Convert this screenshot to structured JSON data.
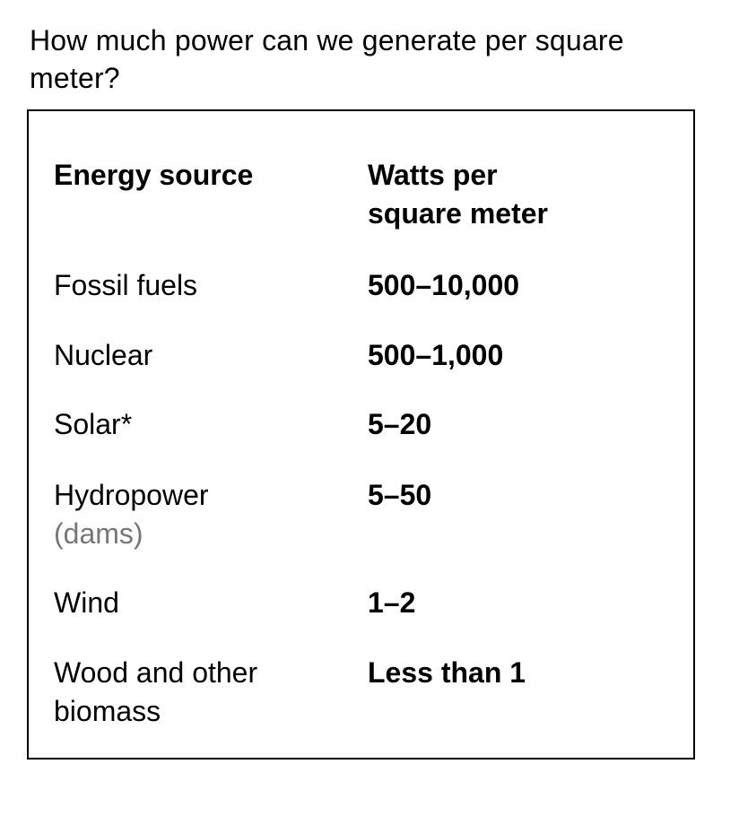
{
  "title": "How much power can we generate per square meter?",
  "table": {
    "header": {
      "source": "Energy source",
      "watts_line1": "Watts per",
      "watts_line2": "square meter"
    },
    "rows": [
      {
        "source": "Fossil fuels",
        "note": "",
        "watts": "500–10,000"
      },
      {
        "source": "Nuclear",
        "note": "",
        "watts": "500–1,000"
      },
      {
        "source": "Solar*",
        "note": "",
        "watts": "5–20"
      },
      {
        "source": "Hydropower",
        "note": "(dams)",
        "watts": "5–50"
      },
      {
        "source": "Wind",
        "note": "",
        "watts": "1–2"
      },
      {
        "source": "Wood and other biomass",
        "note": "",
        "watts": "Less than 1"
      }
    ]
  },
  "colors": {
    "text": "#000000",
    "note": "#777777",
    "border": "#000000",
    "background": "#ffffff"
  }
}
